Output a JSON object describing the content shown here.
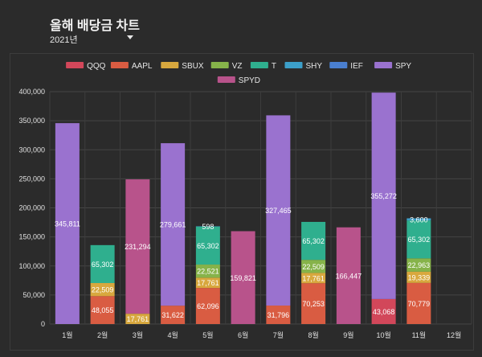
{
  "header": {
    "title": "올해 배당금 차트",
    "year_selected": "2021년"
  },
  "chart_data": {
    "type": "bar",
    "stacked": true,
    "categories": [
      "1월",
      "2월",
      "3월",
      "4월",
      "5월",
      "6월",
      "7월",
      "8월",
      "9월",
      "10월",
      "11월",
      "12월"
    ],
    "ylim": [
      0,
      400000
    ],
    "yticks": [
      0,
      50000,
      100000,
      150000,
      200000,
      250000,
      300000,
      350000,
      400000
    ],
    "ytick_labels": [
      "0",
      "50,000",
      "100,000",
      "150,000",
      "200,000",
      "250,000",
      "300,000",
      "350,000",
      "400,000"
    ],
    "legend_position": "top",
    "grid": true,
    "series": [
      {
        "name": "QQQ",
        "color": "#d2475a",
        "values": [
          0,
          0,
          0,
          0,
          0,
          0,
          0,
          0,
          0,
          43068,
          0,
          0
        ]
      },
      {
        "name": "AAPL",
        "color": "#d95c42",
        "values": [
          0,
          48055,
          0,
          31622,
          62096,
          0,
          31796,
          70253,
          0,
          0,
          70779,
          0
        ]
      },
      {
        "name": "SBUX",
        "color": "#d8a83e",
        "values": [
          0,
          22509,
          17761,
          0,
          17761,
          0,
          0,
          17761,
          0,
          0,
          19339,
          0
        ]
      },
      {
        "name": "VZ",
        "color": "#86b34a",
        "values": [
          0,
          0,
          0,
          0,
          22521,
          0,
          0,
          22509,
          0,
          0,
          22963,
          0
        ]
      },
      {
        "name": "T",
        "color": "#2faf8e",
        "values": [
          0,
          65302,
          0,
          0,
          65302,
          0,
          0,
          65302,
          0,
          0,
          65302,
          0
        ]
      },
      {
        "name": "SHY",
        "color": "#3c9fc9",
        "values": [
          0,
          0,
          0,
          0,
          598,
          0,
          0,
          0,
          0,
          0,
          3600,
          0
        ]
      },
      {
        "name": "IEF",
        "color": "#4a7fd0",
        "values": [
          0,
          0,
          0,
          0,
          0,
          0,
          0,
          0,
          0,
          0,
          0,
          0
        ]
      },
      {
        "name": "SPY",
        "color": "#9a72cf",
        "values": [
          345811,
          0,
          0,
          279661,
          0,
          0,
          327465,
          0,
          0,
          355272,
          0,
          0
        ]
      },
      {
        "name": "SPYD",
        "color": "#b8538b",
        "values": [
          0,
          0,
          231294,
          0,
          0,
          159821,
          0,
          0,
          166447,
          0,
          0,
          0
        ]
      }
    ],
    "data_labels": [
      {
        "category": "1월",
        "series": "SPY",
        "text": "345,811"
      },
      {
        "category": "2월",
        "series": "AAPL",
        "text": "48,055"
      },
      {
        "category": "2월",
        "series": "SBUX",
        "text": "22,509"
      },
      {
        "category": "2월",
        "series": "T",
        "text": "65,302"
      },
      {
        "category": "3월",
        "series": "SBUX",
        "text": "17,761"
      },
      {
        "category": "3월",
        "series": "SPYD",
        "text": "231,294"
      },
      {
        "category": "4월",
        "series": "AAPL",
        "text": "31,622"
      },
      {
        "category": "4월",
        "series": "SPY",
        "text": "279,661"
      },
      {
        "category": "5월",
        "series": "AAPL",
        "text": "62,096"
      },
      {
        "category": "5월",
        "series": "SBUX",
        "text": "17,761"
      },
      {
        "category": "5월",
        "series": "VZ",
        "text": "22,521"
      },
      {
        "category": "5월",
        "series": "T",
        "text": "65,302"
      },
      {
        "category": "5월",
        "series": "SHY",
        "text": "598"
      },
      {
        "category": "6월",
        "series": "SPYD",
        "text": "159,821"
      },
      {
        "category": "7월",
        "series": "AAPL",
        "text": "31,796"
      },
      {
        "category": "7월",
        "series": "SPY",
        "text": "327,465"
      },
      {
        "category": "8월",
        "series": "AAPL",
        "text": "70,253"
      },
      {
        "category": "8월",
        "series": "SBUX",
        "text": "17,761"
      },
      {
        "category": "8월",
        "series": "VZ",
        "text": "22,509"
      },
      {
        "category": "8월",
        "series": "T",
        "text": "65,302"
      },
      {
        "category": "9월",
        "series": "SPYD",
        "text": "166,447"
      },
      {
        "category": "10월",
        "series": "QQQ",
        "text": "43,068"
      },
      {
        "category": "10월",
        "series": "SPY",
        "text": "355,272"
      },
      {
        "category": "11월",
        "series": "AAPL",
        "text": "70,779"
      },
      {
        "category": "11월",
        "series": "SBUX",
        "text": "19,339"
      },
      {
        "category": "11월",
        "series": "VZ",
        "text": "22,963"
      },
      {
        "category": "11월",
        "series": "T",
        "text": "65,302"
      },
      {
        "category": "11월",
        "series": "SHY",
        "text": "3,600"
      }
    ]
  }
}
